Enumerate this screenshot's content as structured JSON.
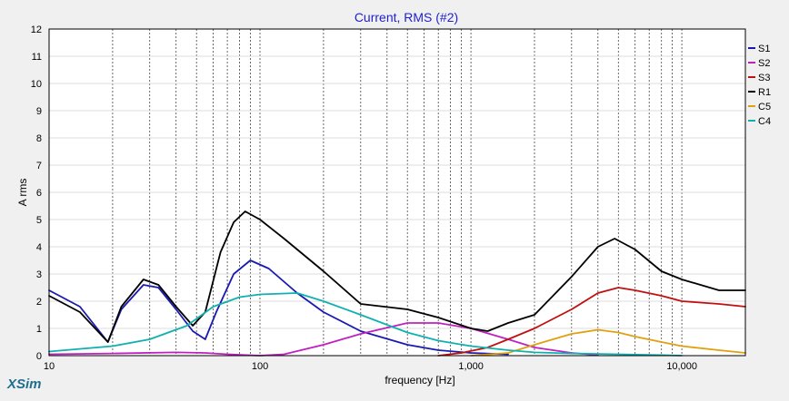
{
  "brand": {
    "label": "XSim",
    "color": "#1f6f8f"
  },
  "chart_data": {
    "type": "line",
    "title": "Current, RMS (#2)",
    "title_color": "#1f1fd1",
    "xlabel": "frequency [Hz]",
    "ylabel": "A rms",
    "x_scale": "log",
    "xlim": [
      10,
      20000
    ],
    "ylim": [
      0,
      12
    ],
    "x_tick_labels": [
      {
        "value": 10,
        "label": "10"
      },
      {
        "value": 100,
        "label": "100"
      },
      {
        "value": 1000,
        "label": "1,000"
      },
      {
        "value": 10000,
        "label": "10,000"
      }
    ],
    "y_ticks": [
      0,
      1,
      2,
      3,
      4,
      5,
      6,
      7,
      8,
      9,
      10,
      11,
      12
    ],
    "grid": true,
    "legend": "right",
    "series": [
      {
        "name": "S1",
        "color": "#1a1ab0",
        "x": [
          10,
          14,
          19,
          22,
          28,
          33,
          40,
          48,
          55,
          62,
          75,
          90,
          110,
          150,
          200,
          300,
          500,
          700,
          1000,
          1500
        ],
        "y": [
          2.4,
          1.8,
          0.5,
          1.7,
          2.6,
          2.5,
          1.7,
          0.9,
          0.6,
          1.6,
          3.0,
          3.5,
          3.2,
          2.3,
          1.6,
          0.9,
          0.4,
          0.2,
          0.1,
          0.05
        ]
      },
      {
        "name": "S2",
        "color": "#c020c0",
        "x": [
          10,
          20,
          40,
          55,
          70,
          100,
          130,
          200,
          300,
          500,
          700,
          1000,
          1500,
          2000,
          3000,
          4000
        ],
        "y": [
          0.05,
          0.08,
          0.12,
          0.1,
          0.05,
          0.0,
          0.05,
          0.4,
          0.8,
          1.2,
          1.2,
          1.0,
          0.6,
          0.3,
          0.1,
          0.02
        ]
      },
      {
        "name": "S3",
        "color": "#c01010",
        "x": [
          700,
          900,
          1200,
          1500,
          2000,
          3000,
          4000,
          5000,
          6000,
          8000,
          10000,
          15000,
          20000
        ],
        "y": [
          0.0,
          0.1,
          0.3,
          0.6,
          1.0,
          1.7,
          2.3,
          2.5,
          2.4,
          2.2,
          2.0,
          1.9,
          1.8
        ]
      },
      {
        "name": "R1",
        "color": "#000000",
        "x": [
          10,
          14,
          19,
          22,
          28,
          33,
          40,
          48,
          55,
          65,
          75,
          85,
          100,
          130,
          200,
          300,
          500,
          700,
          1000,
          1200,
          1500,
          2000,
          3000,
          4000,
          4800,
          6000,
          8000,
          10000,
          15000,
          20000
        ],
        "y": [
          2.2,
          1.6,
          0.5,
          1.8,
          2.8,
          2.6,
          1.8,
          1.1,
          1.6,
          3.8,
          4.9,
          5.3,
          5.0,
          4.3,
          3.1,
          1.9,
          1.7,
          1.4,
          1.0,
          0.9,
          1.2,
          1.5,
          2.9,
          4.0,
          4.3,
          3.9,
          3.1,
          2.8,
          2.4,
          2.4
        ]
      },
      {
        "name": "C5",
        "color": "#e0a010",
        "x": [
          1000,
          1500,
          2000,
          3000,
          4000,
          5000,
          6000,
          8000,
          10000,
          15000,
          20000
        ],
        "y": [
          0.0,
          0.1,
          0.4,
          0.8,
          0.95,
          0.85,
          0.7,
          0.5,
          0.35,
          0.2,
          0.1
        ]
      },
      {
        "name": "C4",
        "color": "#10b0b0",
        "x": [
          10,
          20,
          30,
          45,
          60,
          80,
          100,
          150,
          200,
          300,
          500,
          700,
          1000,
          1500,
          2000,
          3000,
          5000,
          8000,
          10000
        ],
        "y": [
          0.15,
          0.35,
          0.6,
          1.1,
          1.8,
          2.15,
          2.25,
          2.3,
          2.0,
          1.5,
          0.85,
          0.55,
          0.35,
          0.2,
          0.12,
          0.08,
          0.05,
          0.02,
          0.0
        ]
      }
    ]
  }
}
